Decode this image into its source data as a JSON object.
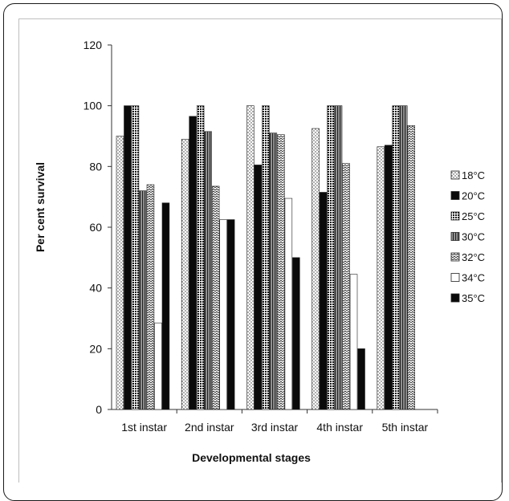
{
  "chart_data": {
    "type": "bar",
    "title": "",
    "xlabel": "Developmental stages",
    "ylabel": "Per cent survival",
    "ylim": [
      0,
      120
    ],
    "yticks": [
      0,
      20,
      40,
      60,
      80,
      100,
      120
    ],
    "categories": [
      "1st instar",
      "2nd instar",
      "3rd instar",
      "4th instar",
      "5th instar"
    ],
    "legend_position": "right",
    "series": [
      {
        "name": "18°C",
        "pattern": "dots",
        "values": [
          90,
          89,
          100,
          92.5,
          86.5
        ]
      },
      {
        "name": "20°C",
        "pattern": "solid-black",
        "values": [
          100,
          96.5,
          80.5,
          71.5,
          87
        ]
      },
      {
        "name": "25°C",
        "pattern": "dense-grid",
        "values": [
          100,
          100,
          100,
          100,
          100
        ]
      },
      {
        "name": "30°C",
        "pattern": "vertical-lines",
        "values": [
          72,
          91.5,
          91,
          100,
          100
        ]
      },
      {
        "name": "32°C",
        "pattern": "zigzag",
        "values": [
          74,
          73.5,
          90.5,
          81,
          93.5
        ]
      },
      {
        "name": "34°C",
        "pattern": "white",
        "values": [
          28.5,
          62.5,
          69.5,
          44.5,
          null
        ]
      },
      {
        "name": "35°C",
        "pattern": "solid-black",
        "values": [
          68,
          62.5,
          50,
          20,
          null
        ]
      }
    ]
  }
}
